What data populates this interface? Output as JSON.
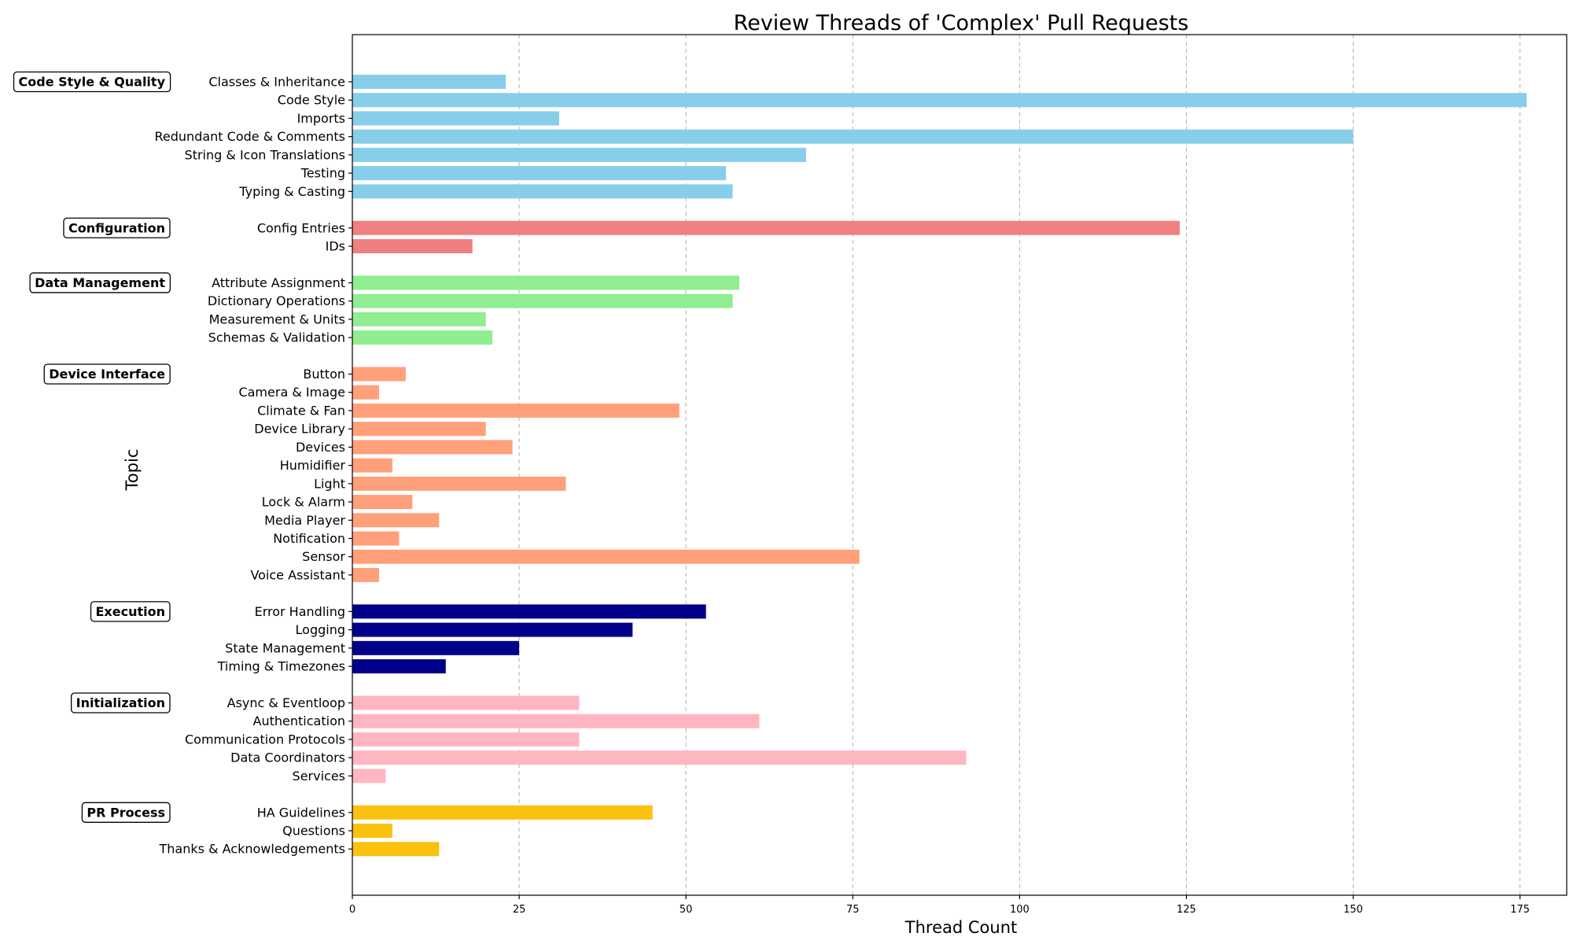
{
  "chart_data": {
    "type": "bar",
    "orientation": "horizontal",
    "title": "Review Threads of 'Complex' Pull Requests",
    "xlabel": "Thread Count",
    "ylabel": "Topic",
    "xlim": [
      0,
      182
    ],
    "xticks": [
      0,
      25,
      50,
      75,
      100,
      125,
      150,
      175
    ],
    "grid": "x-dashed",
    "groups": [
      {
        "name": "Code Style & Quality",
        "color": "#87CEEB",
        "items": [
          {
            "label": "Classes & Inheritance",
            "value": 23
          },
          {
            "label": "Code Style",
            "value": 176
          },
          {
            "label": "Imports",
            "value": 31
          },
          {
            "label": "Redundant Code & Comments",
            "value": 150
          },
          {
            "label": "String & Icon Translations",
            "value": 68
          },
          {
            "label": "Testing",
            "value": 56
          },
          {
            "label": "Typing & Casting",
            "value": 57
          }
        ]
      },
      {
        "name": "Configuration",
        "color": "#F08080",
        "items": [
          {
            "label": "Config Entries",
            "value": 124
          },
          {
            "label": "IDs",
            "value": 18
          }
        ]
      },
      {
        "name": "Data Management",
        "color": "#90EE90",
        "items": [
          {
            "label": "Attribute Assignment",
            "value": 58
          },
          {
            "label": "Dictionary Operations",
            "value": 57
          },
          {
            "label": "Measurement & Units",
            "value": 20
          },
          {
            "label": "Schemas & Validation",
            "value": 21
          }
        ]
      },
      {
        "name": "Device Interface",
        "color": "#FFA07A",
        "items": [
          {
            "label": "Button",
            "value": 8
          },
          {
            "label": "Camera & Image",
            "value": 4
          },
          {
            "label": "Climate & Fan",
            "value": 49
          },
          {
            "label": "Device Library",
            "value": 20
          },
          {
            "label": "Devices",
            "value": 24
          },
          {
            "label": "Humidifier",
            "value": 6
          },
          {
            "label": "Light",
            "value": 32
          },
          {
            "label": "Lock & Alarm",
            "value": 9
          },
          {
            "label": "Media Player",
            "value": 13
          },
          {
            "label": "Notification",
            "value": 7
          },
          {
            "label": "Sensor",
            "value": 76
          },
          {
            "label": "Voice Assistant",
            "value": 4
          }
        ]
      },
      {
        "name": "Execution",
        "color": "#00008B",
        "items": [
          {
            "label": "Error Handling",
            "value": 53
          },
          {
            "label": "Logging",
            "value": 42
          },
          {
            "label": "State Management",
            "value": 25
          },
          {
            "label": "Timing & Timezones",
            "value": 14
          }
        ]
      },
      {
        "name": "Initialization",
        "color": "#FFB6C1",
        "items": [
          {
            "label": "Async & Eventloop",
            "value": 34
          },
          {
            "label": "Authentication",
            "value": 61
          },
          {
            "label": "Communication Protocols",
            "value": 34
          },
          {
            "label": "Data Coordinators",
            "value": 92
          },
          {
            "label": "Services",
            "value": 5
          }
        ]
      },
      {
        "name": "PR Process",
        "color": "#FBC10F",
        "items": [
          {
            "label": "HA Guidelines",
            "value": 45
          },
          {
            "label": "Questions",
            "value": 6
          },
          {
            "label": "Thanks & Acknowledgements",
            "value": 13
          }
        ]
      }
    ]
  }
}
